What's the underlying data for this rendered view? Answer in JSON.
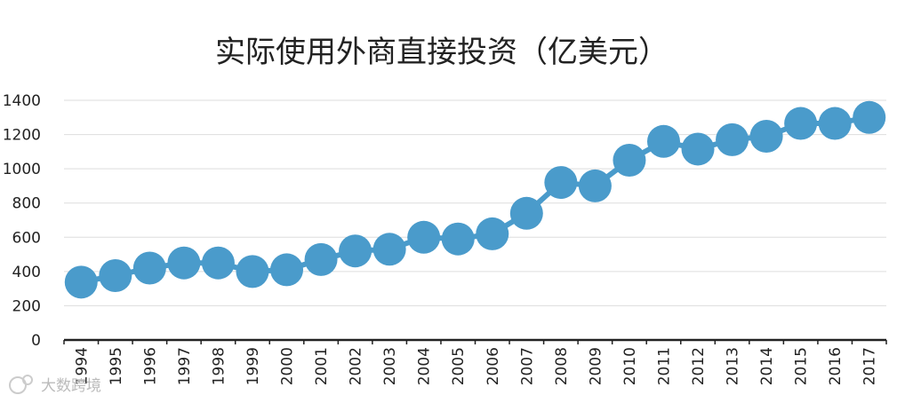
{
  "chart_data": {
    "type": "line",
    "title": "实际使用外商直接投资（亿美元）",
    "xlabel": "",
    "ylabel": "",
    "ylim": [
      0,
      1400
    ],
    "yticks": [
      0,
      200,
      400,
      600,
      800,
      1000,
      1200,
      1400
    ],
    "grid": true,
    "legend": "none",
    "categories": [
      "1994",
      "1995",
      "1996",
      "1997",
      "1998",
      "1999",
      "2000",
      "2001",
      "2002",
      "2003",
      "2004",
      "2005",
      "2006",
      "2007",
      "2008",
      "2009",
      "2010",
      "2011",
      "2012",
      "2013",
      "2014",
      "2015",
      "2016",
      "2017"
    ],
    "series": [
      {
        "values": [
          338,
          376,
          420,
          450,
          450,
          400,
          410,
          470,
          520,
          530,
          600,
          590,
          620,
          740,
          920,
          900,
          1050,
          1160,
          1115,
          1170,
          1190,
          1265,
          1265,
          1300
        ],
        "color": "#4a9bcb"
      }
    ]
  },
  "watermark": {
    "text": "大数跨境",
    "icon": "logo-icon"
  },
  "colors": {
    "grid": "#dddddd",
    "axis": "#222222",
    "series": "#4a9bcb"
  }
}
